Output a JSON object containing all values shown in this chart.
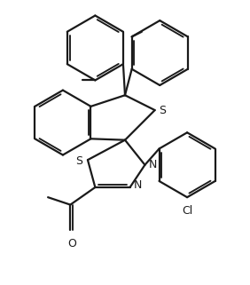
{
  "background_color": "#ffffff",
  "line_color": "#1a1a1a",
  "line_width": 1.6,
  "figsize": [
    2.82,
    3.21
  ],
  "dpi": 100,
  "xlim": [
    0,
    10
  ],
  "ylim": [
    0,
    11.4
  ]
}
